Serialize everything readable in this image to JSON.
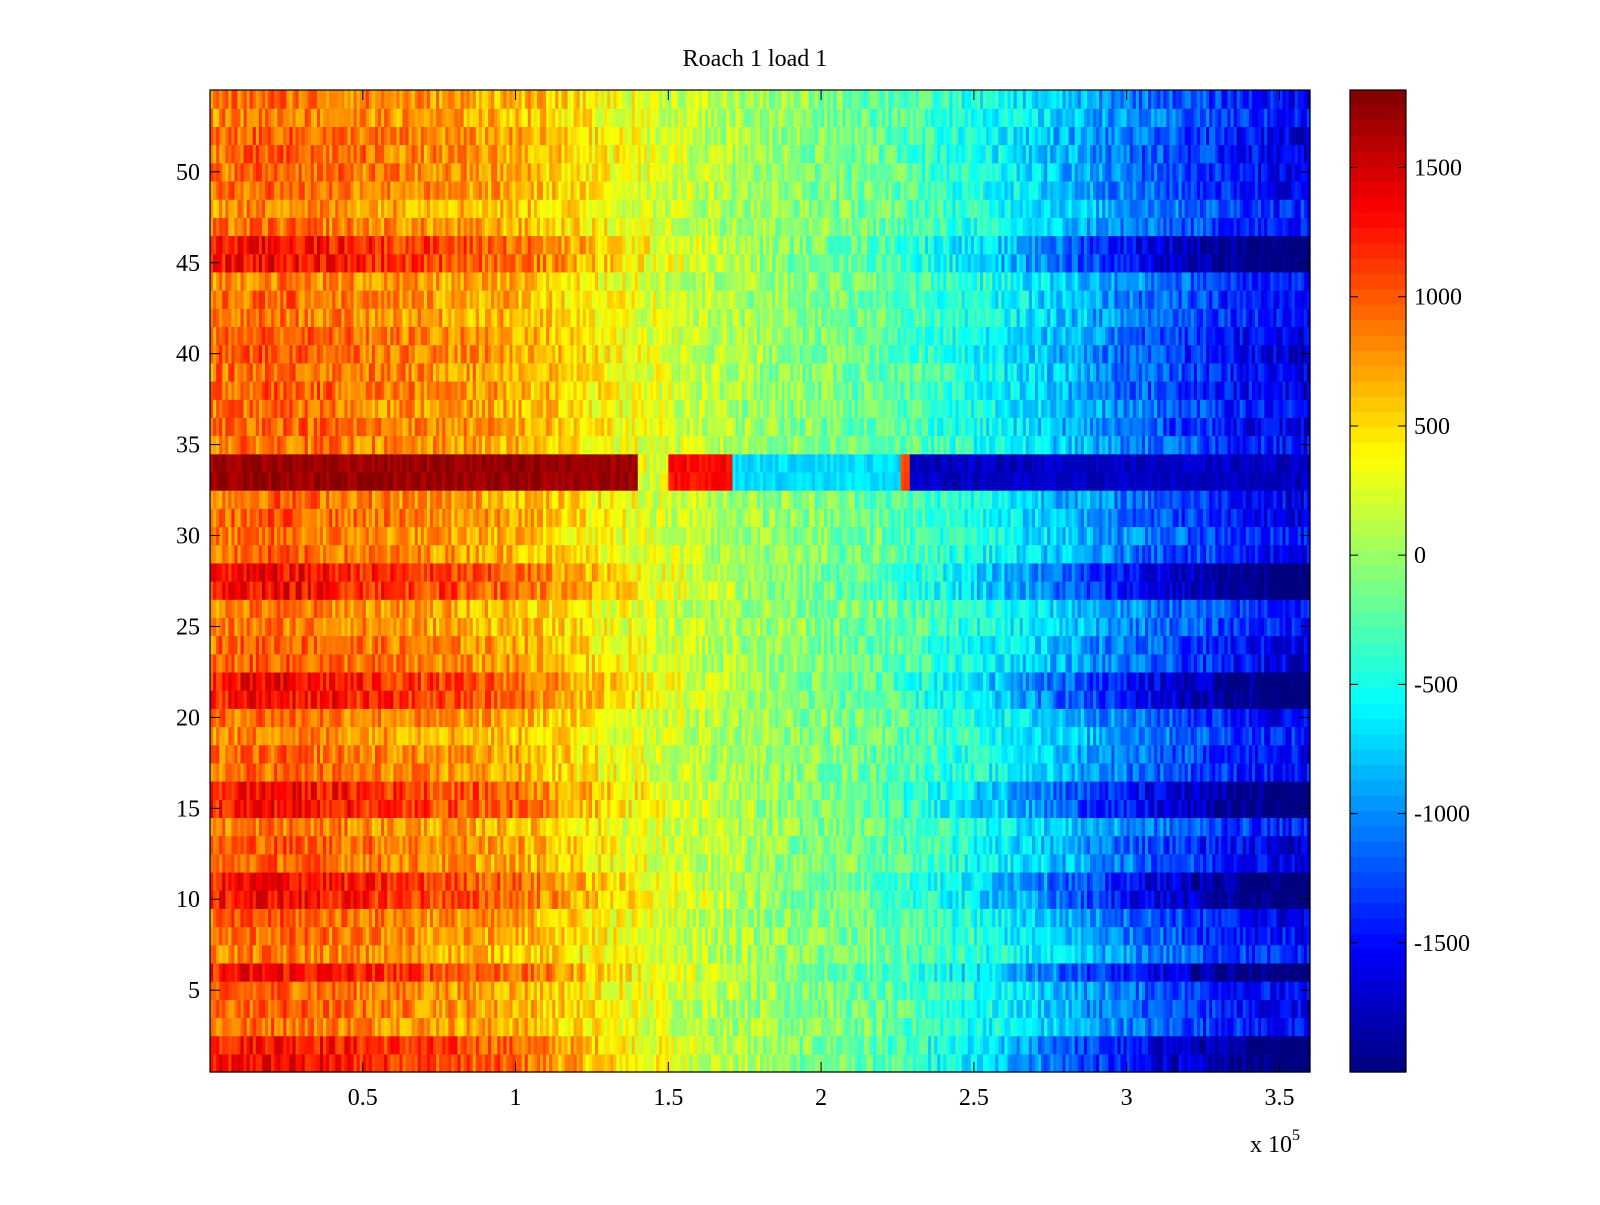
{
  "chart_data": {
    "type": "heatmap",
    "title": "Roach 1 load 1",
    "xlabel": "",
    "ylabel": "",
    "x_range": [
      0,
      360000
    ],
    "y_range": [
      0.5,
      54.5
    ],
    "x_ticks": [
      50000,
      100000,
      150000,
      200000,
      250000,
      300000,
      350000
    ],
    "x_tick_labels": [
      "0.5",
      "1",
      "1.5",
      "2",
      "2.5",
      "3",
      "3.5"
    ],
    "x_multiplier_label": {
      "prefix": "x 10",
      "exponent": "5"
    },
    "y_ticks": [
      5,
      10,
      15,
      20,
      25,
      30,
      35,
      40,
      45,
      50
    ],
    "y_tick_labels": [
      "5",
      "10",
      "15",
      "20",
      "25",
      "30",
      "35",
      "40",
      "45",
      "50"
    ],
    "rows": 54,
    "colormap": "jet",
    "colorbar": {
      "range": [
        -2000,
        1800
      ],
      "ticks": [
        1500,
        1000,
        500,
        0,
        -500,
        -1000,
        -1500
      ],
      "tick_labels": [
        "1500",
        "1000",
        "500",
        "0",
        "-500",
        "-1000",
        "-1500"
      ]
    },
    "trend_profile": {
      "x": [
        0,
        20000,
        60000,
        100000,
        140000,
        180000,
        220000,
        260000,
        300000,
        340000,
        360000
      ],
      "value": [
        900,
        1000,
        850,
        700,
        300,
        0,
        -200,
        -600,
        -1100,
        -1500,
        -1650
      ]
    },
    "hot_rows": [
      1,
      2,
      6,
      10,
      11,
      15,
      16,
      21,
      22,
      27,
      28,
      45,
      46
    ],
    "special_band": {
      "rows": [
        33,
        34
      ],
      "segments": [
        {
          "x0": 0,
          "x1": 140000,
          "value": 1700
        },
        {
          "x0": 140000,
          "x1": 150000,
          "value": 0
        },
        {
          "x0": 150000,
          "x1": 171000,
          "value": 1300
        },
        {
          "x0": 171000,
          "x1": 226000,
          "value": -700
        },
        {
          "x0": 226000,
          "x1": 229000,
          "value": 1100
        },
        {
          "x0": 229000,
          "x1": 360000,
          "value": -1750
        }
      ]
    }
  }
}
